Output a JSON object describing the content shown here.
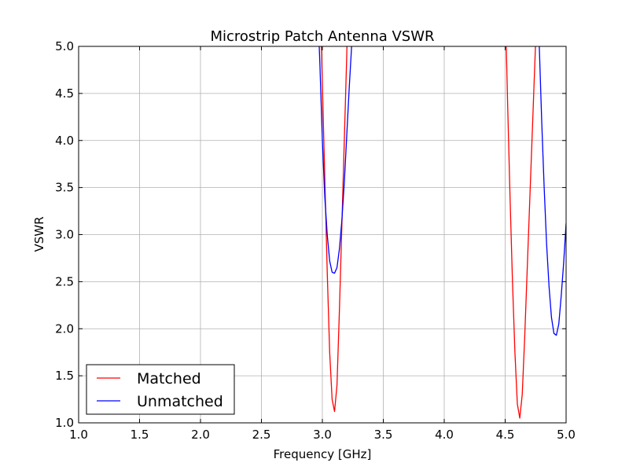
{
  "chart_data": {
    "type": "line",
    "title": "Microstrip Patch Antenna VSWR",
    "xlabel": "Frequency [GHz]",
    "ylabel": "VSWR",
    "xlim": [
      1.0,
      5.0
    ],
    "ylim": [
      1.0,
      5.0
    ],
    "xticks": [
      "1.0",
      "1.5",
      "2.0",
      "2.5",
      "3.0",
      "3.5",
      "4.0",
      "4.5",
      "5.0"
    ],
    "yticks": [
      "1.0",
      "1.5",
      "2.0",
      "2.5",
      "3.0",
      "3.5",
      "4.0",
      "4.5",
      "5.0"
    ],
    "grid": true,
    "legend_position": "lower-left",
    "series": [
      {
        "name": "Matched",
        "color": "#ff0000",
        "segments": [
          {
            "x": [
              2.98,
              3.0,
              3.02,
              3.04,
              3.06,
              3.08,
              3.1,
              3.12,
              3.14,
              3.16,
              3.18,
              3.2,
              3.21
            ],
            "y": [
              5.6,
              4.6,
              3.6,
              2.6,
              1.75,
              1.25,
              1.12,
              1.4,
              2.2,
              3.1,
              4.0,
              4.9,
              5.5
            ]
          },
          {
            "x": [
              4.5,
              4.52,
              4.54,
              4.56,
              4.58,
              4.6,
              4.62,
              4.64,
              4.66,
              4.68,
              4.7,
              4.72,
              4.74,
              4.76,
              4.78
            ],
            "y": [
              5.5,
              4.4,
              3.4,
              2.5,
              1.75,
              1.2,
              1.05,
              1.3,
              1.9,
              2.6,
              3.3,
              4.0,
              4.7,
              5.4,
              6.0
            ]
          }
        ]
      },
      {
        "name": "Unmatched",
        "color": "#0000ff",
        "segments": [
          {
            "x": [
              2.96,
              2.98,
              3.0,
              3.02,
              3.04,
              3.06,
              3.08,
              3.1,
              3.12,
              3.14,
              3.16,
              3.18,
              3.2,
              3.22,
              3.24,
              3.26
            ],
            "y": [
              5.5,
              4.8,
              4.0,
              3.4,
              3.0,
              2.72,
              2.6,
              2.59,
              2.65,
              2.85,
              3.15,
              3.55,
              4.05,
              4.55,
              5.0,
              5.5
            ]
          },
          {
            "x": [
              4.76,
              4.78,
              4.8,
              4.82,
              4.84,
              4.86,
              4.88,
              4.9,
              4.92,
              4.94,
              4.96,
              4.98,
              5.0
            ],
            "y": [
              5.6,
              5.0,
              4.2,
              3.5,
              2.9,
              2.45,
              2.12,
              1.95,
              1.93,
              2.05,
              2.35,
              2.7,
              3.12
            ]
          }
        ]
      }
    ]
  }
}
